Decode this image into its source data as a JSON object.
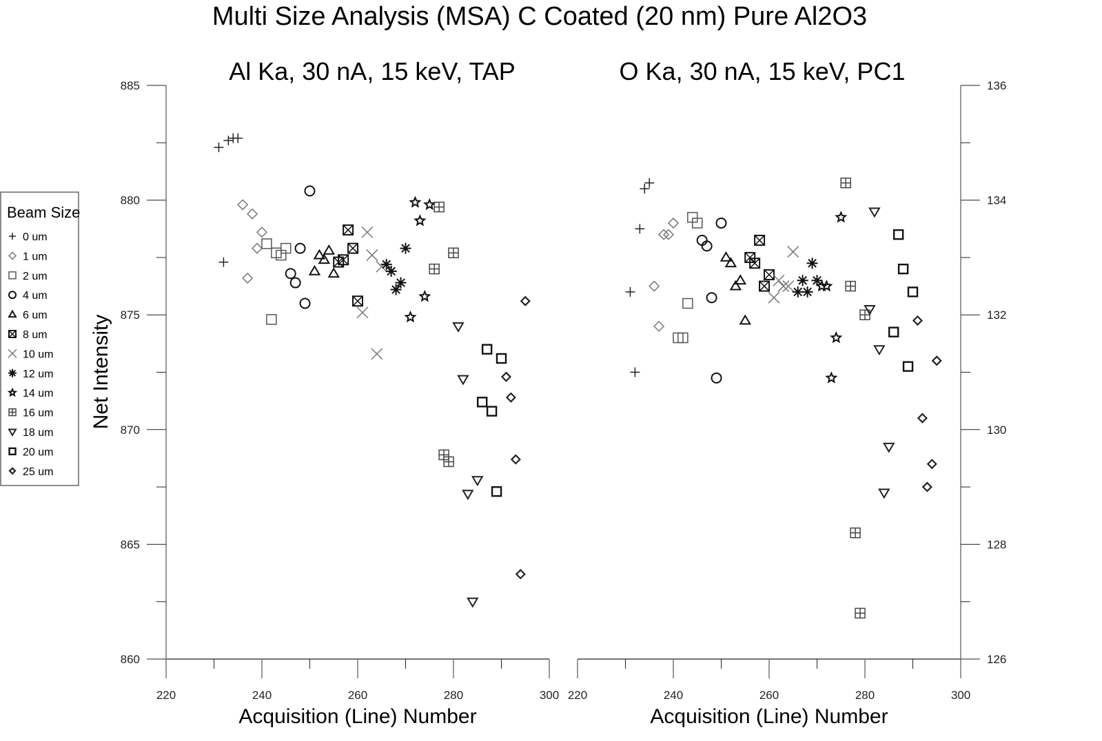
{
  "chart_data": {
    "type": "scatter",
    "title": "Multi Size Analysis (MSA) C Coated (20 nm) Pure Al2O3",
    "ylabel": "Net Intensity",
    "legend": {
      "title": "Beam Size",
      "placement": "left",
      "entries": [
        {
          "label": "0 um",
          "marker": "plus",
          "color": "#222222"
        },
        {
          "label": "1 um",
          "marker": "diamond",
          "color": "#777777"
        },
        {
          "label": "2 um",
          "marker": "square",
          "color": "#555555"
        },
        {
          "label": "4 um",
          "marker": "circle",
          "color": "#111111"
        },
        {
          "label": "6 um",
          "marker": "triangle-up",
          "color": "#111111"
        },
        {
          "label": "8 um",
          "marker": "square-x",
          "color": "#111111"
        },
        {
          "label": "10 um",
          "marker": "x",
          "color": "#777777"
        },
        {
          "label": "12 um",
          "marker": "asterisk",
          "color": "#111111"
        },
        {
          "label": "14 um",
          "marker": "star",
          "color": "#111111"
        },
        {
          "label": "16 um",
          "marker": "square-plus",
          "color": "#444444"
        },
        {
          "label": "18 um",
          "marker": "triangle-down",
          "color": "#222222"
        },
        {
          "label": "20 um",
          "marker": "square-bold",
          "color": "#111111"
        },
        {
          "label": "25 um",
          "marker": "diamond-bold",
          "color": "#222222"
        }
      ]
    },
    "panels": [
      {
        "title": "Al Ka, 30 nA, 15 keV, TAP",
        "xlabel": "Acquisition (Line) Number",
        "xlim": [
          220,
          300
        ],
        "xticks": [
          220,
          240,
          260,
          280,
          300
        ],
        "ylim": [
          860,
          885
        ],
        "yticks": [
          860,
          865,
          870,
          875,
          880,
          885
        ],
        "yaxis_side": "left",
        "grid": false,
        "series": [
          {
            "name": "0 um",
            "x": [
              231,
              233,
              234,
              235,
              232
            ],
            "y": [
              882.3,
              882.6,
              882.7,
              882.7,
              877.3
            ]
          },
          {
            "name": "1 um",
            "x": [
              236,
              238,
              240,
              239,
              237
            ],
            "y": [
              879.8,
              879.4,
              878.6,
              877.9,
              876.6
            ]
          },
          {
            "name": "2 um",
            "x": [
              242,
              241,
              243,
              245,
              244
            ],
            "y": [
              874.8,
              878.1,
              877.7,
              877.9,
              877.6
            ]
          },
          {
            "name": "4 um",
            "x": [
              250,
              248,
              246,
              247,
              249
            ],
            "y": [
              880.4,
              877.9,
              876.8,
              876.4,
              875.5
            ]
          },
          {
            "name": "6 um",
            "x": [
              252,
              254,
              253,
              251,
              255
            ],
            "y": [
              877.6,
              877.8,
              877.4,
              876.9,
              876.8
            ]
          },
          {
            "name": "8 um",
            "x": [
              258,
              259,
              257,
              256,
              260
            ],
            "y": [
              878.7,
              877.9,
              877.4,
              877.3,
              875.6
            ]
          },
          {
            "name": "10 um",
            "x": [
              262,
              263,
              265,
              261,
              264
            ],
            "y": [
              878.6,
              877.6,
              877.1,
              875.1,
              873.3
            ]
          },
          {
            "name": "12 um",
            "x": [
              270,
              266,
              267,
              269,
              268
            ],
            "y": [
              877.9,
              877.2,
              876.9,
              876.4,
              876.1
            ]
          },
          {
            "name": "14 um",
            "x": [
              272,
              275,
              273,
              274,
              271
            ],
            "y": [
              879.9,
              879.8,
              879.1,
              875.8,
              874.9
            ]
          },
          {
            "name": "16 um",
            "x": [
              277,
              280,
              276,
              278,
              279
            ],
            "y": [
              879.7,
              877.7,
              877.0,
              868.9,
              868.6
            ]
          },
          {
            "name": "18 um",
            "x": [
              281,
              282,
              283,
              285,
              284
            ],
            "y": [
              874.5,
              872.2,
              867.2,
              867.8,
              862.5
            ]
          },
          {
            "name": "20 um",
            "x": [
              287,
              290,
              286,
              288,
              289
            ],
            "y": [
              873.5,
              873.1,
              871.2,
              870.8,
              867.3
            ]
          },
          {
            "name": "25 um",
            "x": [
              295,
              291,
              292,
              293,
              294
            ],
            "y": [
              875.6,
              872.3,
              871.4,
              868.7,
              863.7
            ]
          }
        ]
      },
      {
        "title": "O Ka, 30 nA, 15 keV, PC1",
        "xlabel": "Acquisition (Line) Number",
        "xlim": [
          220,
          300
        ],
        "xticks": [
          220,
          240,
          260,
          280,
          300
        ],
        "ylim": [
          126,
          136
        ],
        "yticks": [
          126,
          128,
          130,
          132,
          134,
          136
        ],
        "yaxis_side": "right",
        "grid": false,
        "series": [
          {
            "name": "0 um",
            "x": [
              234,
              235,
              233,
              231,
              232
            ],
            "y": [
              134.2,
              134.3,
              133.5,
              132.4,
              131.0
            ]
          },
          {
            "name": "1 um",
            "x": [
              240,
              239,
              238,
              236,
              237
            ],
            "y": [
              133.6,
              133.4,
              133.4,
              132.5,
              131.8
            ]
          },
          {
            "name": "2 um",
            "x": [
              244,
              245,
              243,
              241,
              242
            ],
            "y": [
              133.7,
              133.6,
              132.2,
              131.6,
              131.6
            ]
          },
          {
            "name": "4 um",
            "x": [
              250,
              246,
              247,
              248,
              249
            ],
            "y": [
              133.6,
              133.3,
              133.2,
              132.3,
              130.9
            ]
          },
          {
            "name": "6 um",
            "x": [
              251,
              252,
              254,
              253,
              255
            ],
            "y": [
              133.0,
              132.9,
              132.6,
              132.5,
              131.9
            ]
          },
          {
            "name": "8 um",
            "x": [
              258,
              256,
              257,
              260,
              259
            ],
            "y": [
              133.3,
              133.0,
              132.9,
              132.7,
              132.5
            ]
          },
          {
            "name": "10 um",
            "x": [
              265,
              262,
              263,
              261,
              264
            ],
            "y": [
              133.1,
              132.6,
              132.5,
              132.3,
              132.5
            ]
          },
          {
            "name": "12 um",
            "x": [
              269,
              267,
              270,
              266,
              268
            ],
            "y": [
              132.9,
              132.6,
              132.6,
              132.4,
              132.4
            ]
          },
          {
            "name": "14 um",
            "x": [
              275,
              271,
              272,
              274,
              273
            ],
            "y": [
              133.7,
              132.5,
              132.5,
              131.6,
              130.9
            ]
          },
          {
            "name": "16 um",
            "x": [
              276,
              277,
              280,
              278,
              279
            ],
            "y": [
              134.3,
              132.5,
              132.0,
              128.2,
              126.8
            ]
          },
          {
            "name": "18 um",
            "x": [
              282,
              281,
              283,
              285,
              284
            ],
            "y": [
              133.8,
              132.1,
              131.4,
              129.7,
              128.9
            ]
          },
          {
            "name": "20 um",
            "x": [
              287,
              288,
              290,
              286,
              289
            ],
            "y": [
              133.4,
              132.8,
              132.4,
              131.7,
              131.1
            ]
          },
          {
            "name": "25 um",
            "x": [
              291,
              295,
              292,
              294,
              293
            ],
            "y": [
              131.9,
              131.2,
              130.2,
              129.4,
              129.0
            ]
          }
        ]
      }
    ]
  }
}
